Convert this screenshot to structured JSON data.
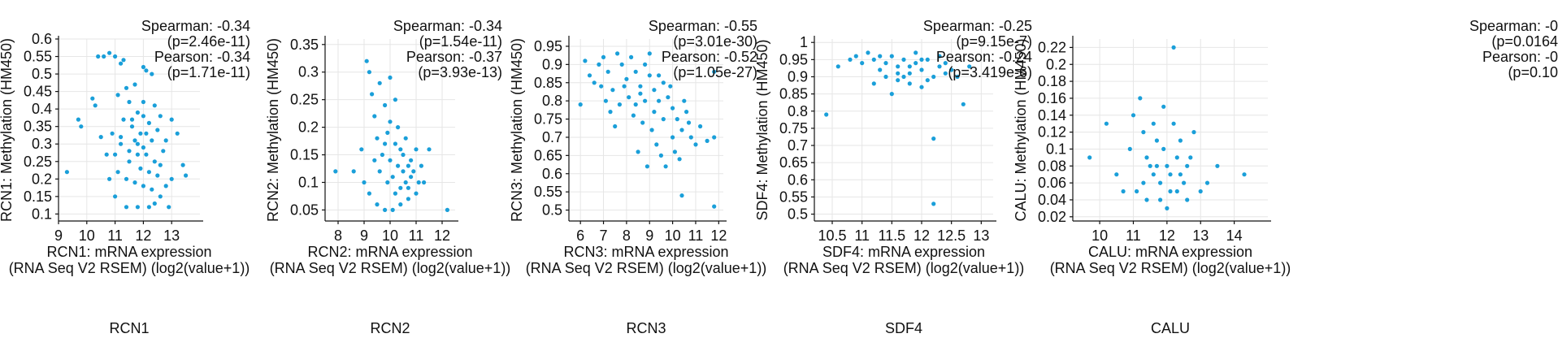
{
  "figure_title": "",
  "chart_data": [
    {
      "type": "scatter",
      "gene": "RCN1",
      "caption": "RCN1",
      "xlabel_lines": [
        "RCN1: mRNA expression",
        "(RNA Seq V2 RSEM) (log2(value+1))"
      ],
      "ylabel": "RCN1: Methylation (HM450)",
      "xlim": [
        9,
        14
      ],
      "ylim": [
        0.08,
        0.6
      ],
      "x_ticks": [
        9,
        10,
        11,
        12,
        13
      ],
      "x_tick_labels": [
        "9",
        "10",
        "11",
        "12",
        "13"
      ],
      "y_ticks": [
        0.1,
        0.15,
        0.2,
        0.25,
        0.3,
        0.35,
        0.4,
        0.45,
        0.5,
        0.55,
        0.6
      ],
      "y_tick_labels": [
        "0.1",
        "0.15",
        "0.2",
        "0.25",
        "0.3",
        "0.35",
        "0.4",
        "0.45",
        "0.5",
        "0.55",
        "0.6"
      ],
      "stats": [
        "Spearman: -0.34",
        "(p=2.46e-11)",
        "Pearson: -0.34",
        "(p=1.71e-11)"
      ],
      "color": "#1a9fd9",
      "points": [
        [
          9.3,
          0.22
        ],
        [
          9.7,
          0.37
        ],
        [
          9.8,
          0.35
        ],
        [
          10.2,
          0.43
        ],
        [
          10.3,
          0.41
        ],
        [
          10.4,
          0.55
        ],
        [
          10.6,
          0.55
        ],
        [
          10.8,
          0.56
        ],
        [
          11.0,
          0.55
        ],
        [
          11.2,
          0.53
        ],
        [
          11.3,
          0.54
        ],
        [
          11.1,
          0.44
        ],
        [
          11.4,
          0.46
        ],
        [
          11.5,
          0.42
        ],
        [
          11.7,
          0.47
        ],
        [
          12.0,
          0.52
        ],
        [
          12.1,
          0.51
        ],
        [
          12.3,
          0.5
        ],
        [
          11.8,
          0.39
        ],
        [
          12.0,
          0.42
        ],
        [
          12.4,
          0.41
        ],
        [
          12.6,
          0.38
        ],
        [
          13.0,
          0.37
        ],
        [
          13.2,
          0.33
        ],
        [
          13.4,
          0.24
        ],
        [
          13.5,
          0.21
        ],
        [
          13.0,
          0.2
        ],
        [
          12.8,
          0.18
        ],
        [
          12.6,
          0.15
        ],
        [
          12.4,
          0.13
        ],
        [
          12.2,
          0.12
        ],
        [
          12.9,
          0.12
        ],
        [
          11.8,
          0.12
        ],
        [
          11.4,
          0.12
        ],
        [
          11.0,
          0.15
        ],
        [
          10.8,
          0.2
        ],
        [
          10.7,
          0.27
        ],
        [
          10.5,
          0.32
        ],
        [
          10.9,
          0.33
        ],
        [
          11.2,
          0.3
        ],
        [
          11.5,
          0.28
        ],
        [
          11.8,
          0.3
        ],
        [
          12.1,
          0.27
        ],
        [
          12.4,
          0.25
        ],
        [
          12.7,
          0.28
        ],
        [
          11.6,
          0.35
        ],
        [
          11.9,
          0.33
        ],
        [
          12.2,
          0.36
        ],
        [
          11.3,
          0.37
        ],
        [
          11.7,
          0.31
        ],
        [
          12.0,
          0.29
        ],
        [
          12.3,
          0.31
        ],
        [
          11.5,
          0.25
        ],
        [
          11.9,
          0.23
        ],
        [
          12.2,
          0.22
        ],
        [
          12.5,
          0.21
        ],
        [
          11.1,
          0.22
        ],
        [
          11.4,
          0.2
        ],
        [
          11.7,
          0.19
        ],
        [
          12.0,
          0.18
        ],
        [
          12.3,
          0.17
        ],
        [
          12.6,
          0.24
        ],
        [
          12.8,
          0.31
        ],
        [
          11.0,
          0.27
        ],
        [
          11.2,
          0.32
        ],
        [
          11.6,
          0.37
        ],
        [
          12.0,
          0.38
        ],
        [
          12.5,
          0.34
        ],
        [
          11.8,
          0.27
        ],
        [
          12.1,
          0.33
        ]
      ]
    },
    {
      "type": "scatter",
      "gene": "RCN2",
      "caption": "RCN2",
      "xlabel_lines": [
        "RCN2: mRNA expression",
        "(RNA Seq V2 RSEM) (log2(value+1))"
      ],
      "ylabel": "RCN2: Methylation (HM450)",
      "xlim": [
        7.5,
        12.5
      ],
      "ylim": [
        0.03,
        0.36
      ],
      "x_ticks": [
        8,
        9,
        10,
        11,
        12
      ],
      "x_tick_labels": [
        "8",
        "9",
        "10",
        "11",
        "12"
      ],
      "y_ticks": [
        0.05,
        0.1,
        0.15,
        0.2,
        0.25,
        0.3,
        0.35
      ],
      "y_tick_labels": [
        "0.05",
        "0.1",
        "0.15",
        "0.2",
        "0.25",
        "0.3",
        "0.35"
      ],
      "stats": [
        "Spearman: -0.34",
        "(p=1.54e-11)",
        "Pearson: -0.37",
        "(p=3.93e-13)"
      ],
      "color": "#1a9fd9",
      "points": [
        [
          7.9,
          0.12
        ],
        [
          8.6,
          0.12
        ],
        [
          8.9,
          0.16
        ],
        [
          9.1,
          0.32
        ],
        [
          9.2,
          0.3
        ],
        [
          9.3,
          0.26
        ],
        [
          9.4,
          0.22
        ],
        [
          9.6,
          0.28
        ],
        [
          9.8,
          0.24
        ],
        [
          10.0,
          0.29
        ],
        [
          10.2,
          0.25
        ],
        [
          9.0,
          0.1
        ],
        [
          9.2,
          0.08
        ],
        [
          9.5,
          0.06
        ],
        [
          9.8,
          0.05
        ],
        [
          10.1,
          0.05
        ],
        [
          10.4,
          0.06
        ],
        [
          10.7,
          0.07
        ],
        [
          11.0,
          0.08
        ],
        [
          11.3,
          0.1
        ],
        [
          12.2,
          0.05
        ],
        [
          11.5,
          0.16
        ],
        [
          11.2,
          0.13
        ],
        [
          10.9,
          0.12
        ],
        [
          10.6,
          0.1
        ],
        [
          10.3,
          0.13
        ],
        [
          10.0,
          0.14
        ],
        [
          9.7,
          0.15
        ],
        [
          9.5,
          0.18
        ],
        [
          9.9,
          0.19
        ],
        [
          10.2,
          0.17
        ],
        [
          10.5,
          0.15
        ],
        [
          10.8,
          0.14
        ],
        [
          11.0,
          0.16
        ],
        [
          10.1,
          0.11
        ],
        [
          10.4,
          0.09
        ],
        [
          10.7,
          0.13
        ],
        [
          9.6,
          0.12
        ],
        [
          9.9,
          0.1
        ],
        [
          10.3,
          0.2
        ],
        [
          10.6,
          0.18
        ],
        [
          9.4,
          0.14
        ],
        [
          10.0,
          0.21
        ],
        [
          10.5,
          0.12
        ],
        [
          10.8,
          0.11
        ],
        [
          11.1,
          0.1
        ],
        [
          10.2,
          0.08
        ],
        [
          9.8,
          0.17
        ],
        [
          10.4,
          0.16
        ],
        [
          10.7,
          0.09
        ]
      ]
    },
    {
      "type": "scatter",
      "gene": "RCN3",
      "caption": "RCN3",
      "xlabel_lines": [
        "RCN3: mRNA expression",
        "(RNA Seq V2 RSEM) (log2(value+1))"
      ],
      "ylabel": "RCN3: Methylation (HM450)",
      "xlim": [
        5.5,
        12.2
      ],
      "ylim": [
        0.47,
        0.97
      ],
      "x_ticks": [
        6,
        7,
        8,
        9,
        10,
        11,
        12
      ],
      "x_tick_labels": [
        "6",
        "7",
        "8",
        "9",
        "10",
        "11",
        "12"
      ],
      "y_ticks": [
        0.5,
        0.55,
        0.6,
        0.65,
        0.7,
        0.75,
        0.8,
        0.85,
        0.9,
        0.95
      ],
      "y_tick_labels": [
        "0.5",
        "0.55",
        "0.6",
        "0.65",
        "0.7",
        "0.75",
        "0.8",
        "0.85",
        "0.9",
        "0.95"
      ],
      "stats": [
        "Spearman: -0.55",
        "(p=3.01e-30)",
        "Pearson: -0.52",
        "(p=1.05e-27)"
      ],
      "color": "#1a9fd9",
      "points": [
        [
          6.0,
          0.79
        ],
        [
          6.2,
          0.91
        ],
        [
          6.4,
          0.87
        ],
        [
          6.6,
          0.85
        ],
        [
          6.8,
          0.9
        ],
        [
          7.0,
          0.92
        ],
        [
          7.2,
          0.88
        ],
        [
          7.4,
          0.83
        ],
        [
          7.6,
          0.93
        ],
        [
          7.8,
          0.9
        ],
        [
          8.0,
          0.86
        ],
        [
          8.2,
          0.92
        ],
        [
          8.4,
          0.88
        ],
        [
          8.6,
          0.84
        ],
        [
          8.8,
          0.9
        ],
        [
          9.0,
          0.87
        ],
        [
          9.2,
          0.83
        ],
        [
          9.4,
          0.8
        ],
        [
          9.6,
          0.85
        ],
        [
          9.8,
          0.81
        ],
        [
          10.0,
          0.78
        ],
        [
          10.2,
          0.75
        ],
        [
          10.4,
          0.72
        ],
        [
          10.6,
          0.77
        ],
        [
          10.8,
          0.7
        ],
        [
          11.0,
          0.68
        ],
        [
          11.2,
          0.73
        ],
        [
          11.5,
          0.69
        ],
        [
          11.8,
          0.7
        ],
        [
          11.8,
          0.51
        ],
        [
          10.4,
          0.54
        ],
        [
          11.8,
          0.88
        ],
        [
          9.0,
          0.93
        ],
        [
          7.5,
          0.73
        ],
        [
          7.3,
          0.77
        ],
        [
          7.7,
          0.79
        ],
        [
          8.1,
          0.81
        ],
        [
          8.3,
          0.76
        ],
        [
          8.7,
          0.74
        ],
        [
          9.1,
          0.72
        ],
        [
          9.3,
          0.68
        ],
        [
          9.5,
          0.65
        ],
        [
          9.7,
          0.62
        ],
        [
          10.1,
          0.66
        ],
        [
          10.3,
          0.64
        ],
        [
          8.5,
          0.66
        ],
        [
          8.9,
          0.62
        ],
        [
          8.4,
          0.79
        ],
        [
          8.8,
          0.8
        ],
        [
          9.2,
          0.77
        ],
        [
          9.6,
          0.75
        ],
        [
          10.0,
          0.7
        ],
        [
          6.9,
          0.84
        ],
        [
          7.1,
          0.8
        ],
        [
          7.9,
          0.84
        ],
        [
          8.6,
          0.82
        ],
        [
          9.4,
          0.87
        ],
        [
          9.9,
          0.84
        ],
        [
          10.5,
          0.8
        ],
        [
          10.7,
          0.74
        ]
      ]
    },
    {
      "type": "scatter",
      "gene": "SDF4",
      "caption": "SDF4",
      "xlabel_lines": [
        "SDF4: mRNA expression",
        "(RNA Seq V2 RSEM) (log2(value+1))"
      ],
      "ylabel": "SDF4: Methylation (HM450)",
      "xlim": [
        10.2,
        13.2
      ],
      "ylim": [
        0.48,
        1.01
      ],
      "x_ticks": [
        10.5,
        11,
        11.5,
        12,
        12.5,
        13
      ],
      "x_tick_labels": [
        "10.5",
        "11",
        "11.5",
        "12",
        "12.5",
        "13"
      ],
      "y_ticks": [
        0.5,
        0.55,
        0.6,
        0.65,
        0.7,
        0.75,
        0.8,
        0.85,
        0.9,
        0.95,
        1
      ],
      "y_tick_labels": [
        "0.5",
        "0.55",
        "0.6",
        "0.65",
        "0.7",
        "0.75",
        "0.8",
        "0.85",
        "0.9",
        "0.95",
        "1"
      ],
      "stats": [
        "Spearman: -0.25",
        "(p=9.15e-7)",
        "Pearson: -0.24",
        "(p=3.419e-6)"
      ],
      "color": "#1a9fd9",
      "points": [
        [
          10.4,
          0.79
        ],
        [
          10.6,
          0.93
        ],
        [
          10.8,
          0.95
        ],
        [
          10.9,
          0.96
        ],
        [
          11.0,
          0.94
        ],
        [
          11.1,
          0.97
        ],
        [
          11.2,
          0.95
        ],
        [
          11.3,
          0.92
        ],
        [
          11.4,
          0.94
        ],
        [
          11.5,
          0.96
        ],
        [
          11.6,
          0.93
        ],
        [
          11.7,
          0.95
        ],
        [
          11.8,
          0.91
        ],
        [
          11.9,
          0.94
        ],
        [
          12.0,
          0.92
        ],
        [
          12.1,
          0.95
        ],
        [
          12.2,
          0.9
        ],
        [
          12.3,
          0.93
        ],
        [
          12.4,
          0.91
        ],
        [
          12.5,
          0.92
        ],
        [
          12.6,
          0.9
        ],
        [
          12.7,
          0.82
        ],
        [
          12.8,
          0.93
        ],
        [
          12.2,
          0.72
        ],
        [
          12.2,
          0.53
        ],
        [
          11.5,
          0.85
        ],
        [
          11.6,
          0.89
        ],
        [
          11.8,
          0.88
        ],
        [
          12.0,
          0.87
        ],
        [
          12.1,
          0.89
        ],
        [
          11.4,
          0.9
        ],
        [
          11.2,
          0.88
        ],
        [
          11.9,
          0.97
        ],
        [
          12.3,
          0.96
        ],
        [
          11.7,
          0.9
        ],
        [
          11.3,
          0.96
        ],
        [
          12.0,
          0.95
        ],
        [
          11.8,
          0.93
        ],
        [
          11.6,
          0.91
        ],
        [
          12.4,
          0.94
        ]
      ]
    },
    {
      "type": "scatter",
      "gene": "CALU",
      "caption": "CALU",
      "xlabel_lines": [
        "CALU: mRNA expression",
        "(RNA Seq V2 RSEM) (log2(value+1))"
      ],
      "ylabel": "CALU: Methylation (HM450)",
      "xlim": [
        9.2,
        15.0
      ],
      "ylim": [
        0.015,
        0.23
      ],
      "x_ticks": [
        10,
        11,
        12,
        13,
        14
      ],
      "x_tick_labels": [
        "10",
        "11",
        "12",
        "13",
        "14"
      ],
      "y_ticks": [
        0.02,
        0.04,
        0.06,
        0.08,
        0.1,
        0.12,
        0.14,
        0.16,
        0.18,
        0.2,
        0.22
      ],
      "y_tick_labels": [
        "0.02",
        "0.04",
        "0.06",
        "0.08",
        "0.1",
        "0.12",
        "0.14",
        "0.16",
        "0.18",
        "0.2",
        "0.22"
      ],
      "stats": [
        "Spearman: -0",
        "(p=0.0164",
        "Pearson: -0",
        "(p=0.10"
      ],
      "color": "#1a9fd9",
      "points": [
        [
          9.7,
          0.09
        ],
        [
          10.2,
          0.13
        ],
        [
          10.5,
          0.07
        ],
        [
          10.7,
          0.05
        ],
        [
          10.9,
          0.1
        ],
        [
          11.0,
          0.14
        ],
        [
          11.2,
          0.16
        ],
        [
          11.3,
          0.12
        ],
        [
          11.4,
          0.09
        ],
        [
          11.5,
          0.08
        ],
        [
          11.6,
          0.07
        ],
        [
          11.7,
          0.11
        ],
        [
          11.8,
          0.06
        ],
        [
          11.9,
          0.15
        ],
        [
          12.0,
          0.08
        ],
        [
          12.1,
          0.05
        ],
        [
          12.2,
          0.22
        ],
        [
          12.3,
          0.09
        ],
        [
          12.4,
          0.07
        ],
        [
          12.5,
          0.06
        ],
        [
          12.6,
          0.04
        ],
        [
          12.8,
          0.12
        ],
        [
          13.0,
          0.05
        ],
        [
          13.2,
          0.06
        ],
        [
          13.5,
          0.08
        ],
        [
          14.3,
          0.07
        ],
        [
          11.8,
          0.04
        ],
        [
          12.0,
          0.03
        ],
        [
          11.4,
          0.04
        ],
        [
          11.1,
          0.05
        ],
        [
          11.9,
          0.1
        ],
        [
          12.2,
          0.13
        ],
        [
          11.6,
          0.13
        ],
        [
          12.4,
          0.11
        ],
        [
          12.7,
          0.09
        ],
        [
          11.3,
          0.06
        ],
        [
          11.7,
          0.08
        ],
        [
          12.1,
          0.07
        ],
        [
          12.3,
          0.05
        ],
        [
          12.6,
          0.08
        ]
      ]
    }
  ]
}
